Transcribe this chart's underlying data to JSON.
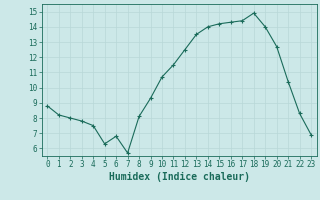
{
  "x": [
    0,
    1,
    2,
    3,
    4,
    5,
    6,
    7,
    8,
    9,
    10,
    11,
    12,
    13,
    14,
    15,
    16,
    17,
    18,
    19,
    20,
    21,
    22,
    23
  ],
  "y": [
    8.8,
    8.2,
    8.0,
    7.8,
    7.5,
    6.3,
    6.8,
    5.7,
    8.1,
    9.3,
    10.7,
    11.5,
    12.5,
    13.5,
    14.0,
    14.2,
    14.3,
    14.4,
    14.9,
    14.0,
    12.7,
    10.4,
    8.3,
    6.9
  ],
  "line_color": "#1a6b5a",
  "marker": "+",
  "marker_size": 3,
  "bg_color": "#cce8e8",
  "grid_color": "#b8d8d8",
  "xlabel": "Humidex (Indice chaleur)",
  "xlim": [
    -0.5,
    23.5
  ],
  "ylim": [
    5.5,
    15.5
  ],
  "yticks": [
    6,
    7,
    8,
    9,
    10,
    11,
    12,
    13,
    14,
    15
  ],
  "xticks": [
    0,
    1,
    2,
    3,
    4,
    5,
    6,
    7,
    8,
    9,
    10,
    11,
    12,
    13,
    14,
    15,
    16,
    17,
    18,
    19,
    20,
    21,
    22,
    23
  ],
  "tick_color": "#1a6b5a",
  "axis_color": "#1a6b5a",
  "tick_fontsize": 5.5,
  "xlabel_fontsize": 7
}
